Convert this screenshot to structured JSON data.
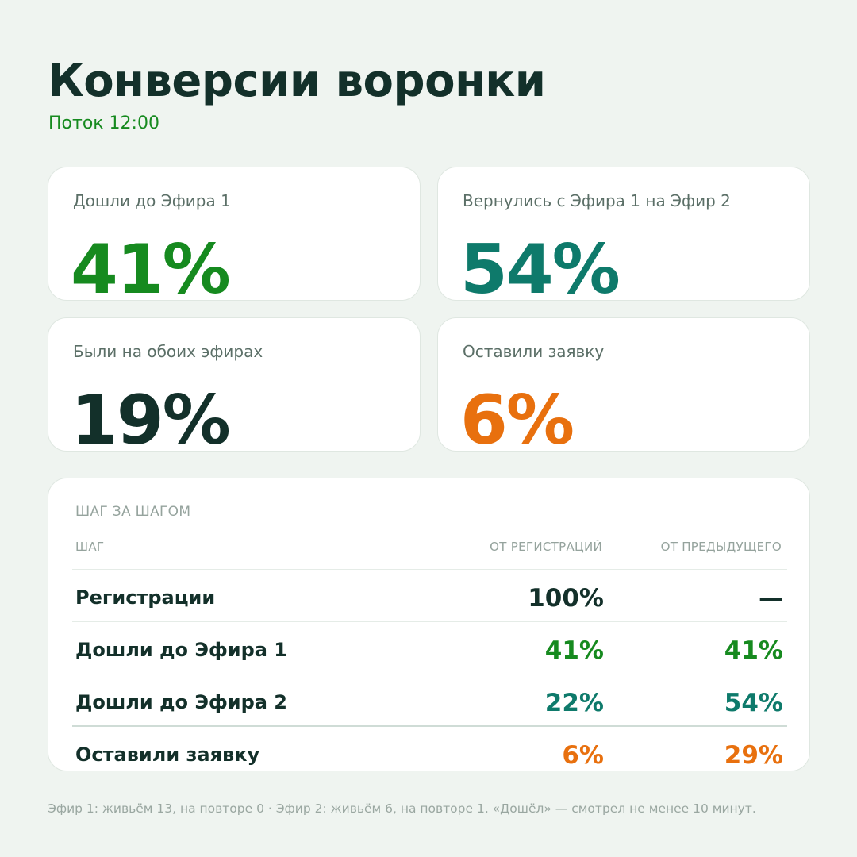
{
  "header": {
    "title": "Конверсии воронки",
    "subtitle": "Поток 12:00"
  },
  "colors": {
    "green": "#168a1f",
    "teal": "#0e7a6b",
    "dark": "#13302a",
    "orange": "#e8700e"
  },
  "kpis": [
    {
      "label": "Дошли до Эфира 1",
      "value": "41%",
      "color": "#168a1f"
    },
    {
      "label": "Вернулись с Эфира 1 на Эфир 2",
      "value": "54%",
      "color": "#0e7a6b"
    },
    {
      "label": "Были на обоих эфирах",
      "value": "19%",
      "color": "#13302a"
    },
    {
      "label": "Оставили заявку",
      "value": "6%",
      "color": "#e8700e"
    }
  ],
  "table": {
    "section_label": "ШАГ ЗА ШАГОМ",
    "headers": {
      "step": "ШАГ",
      "from_reg": "ОТ РЕГИСТРАЦИЙ",
      "from_prev": "ОТ ПРЕДЫДУЩЕГО"
    },
    "rows": [
      {
        "step": "Регистрации",
        "from_reg": "100%",
        "from_prev": "—",
        "color_reg": "#13302a",
        "color_prev": "#13302a"
      },
      {
        "step": "Дошли до Эфира 1",
        "from_reg": "41%",
        "from_prev": "41%",
        "color_reg": "#168a1f",
        "color_prev": "#168a1f"
      },
      {
        "step": "Дошли до Эфира 2",
        "from_reg": "22%",
        "from_prev": "54%",
        "color_reg": "#0e7a6b",
        "color_prev": "#0e7a6b"
      },
      {
        "step": "Оставили заявку",
        "from_reg": "6%",
        "from_prev": "29%",
        "color_reg": "#e8700e",
        "color_prev": "#e8700e"
      }
    ]
  },
  "footnote": "Эфир 1: живьём 13, на повторе 0 · Эфир 2: живьём 6, на повторе 1. «Дошёл» — смотрел не менее 10 минут."
}
